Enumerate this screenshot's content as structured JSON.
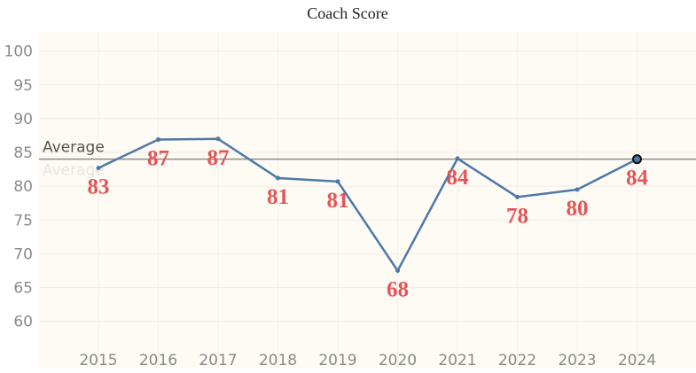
{
  "chart_data": {
    "type": "line",
    "title": "Coach Score",
    "xlabel": "",
    "ylabel": "",
    "categories": [
      "2015",
      "2016",
      "2017",
      "2018",
      "2019",
      "2020",
      "2021",
      "2022",
      "2023",
      "2024"
    ],
    "series": [
      {
        "values": [
          83,
          87,
          87,
          81,
          81,
          68,
          84,
          78,
          80,
          84
        ],
        "plotted": [
          82.7,
          86.9,
          87.0,
          81.2,
          80.7,
          67.5,
          84.1,
          78.4,
          79.5,
          84.0
        ],
        "color": "#4e79a7"
      }
    ],
    "ylim": [
      58,
      101
    ],
    "yticks": [
      60,
      65,
      70,
      75,
      80,
      85,
      90,
      95,
      100
    ],
    "grid": true,
    "reference_line": {
      "label": "Average",
      "value": 84,
      "color": "#8c8c8c"
    },
    "label_color": "#e15759",
    "plot_background": "#fefaf4",
    "highlight_point_index": 9
  }
}
